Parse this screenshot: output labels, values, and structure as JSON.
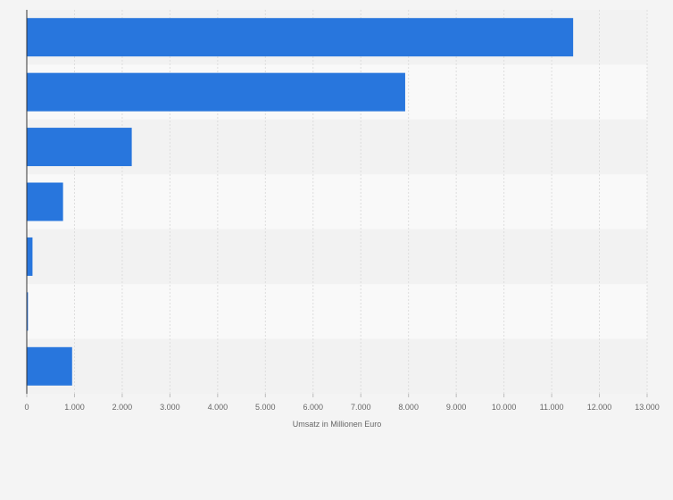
{
  "chart_data": {
    "type": "bar",
    "orientation": "horizontal",
    "categories": [
      "",
      "",
      "",
      "",
      "",
      "",
      ""
    ],
    "values": [
      11450,
      7930,
      2200,
      760,
      120,
      25,
      950
    ],
    "xlabel": "Umsatz in Millionen Euro",
    "ylabel": "",
    "xlim": [
      0,
      13000
    ],
    "ticks": [
      0,
      1000,
      2000,
      3000,
      4000,
      5000,
      6000,
      7000,
      8000,
      9000,
      10000,
      11000,
      12000,
      13000
    ],
    "tick_labels": [
      "0",
      "1.000",
      "2.000",
      "3.000",
      "4.000",
      "5.000",
      "6.000",
      "7.000",
      "8.000",
      "9.000",
      "10.000",
      "11.000",
      "12.000",
      "13.000"
    ],
    "grid": true,
    "legend": "none"
  },
  "colors": {
    "bar": "#2876dd",
    "band_light": "#f9f9f9",
    "band_dark": "#f2f2f2",
    "grid": "#dddddd",
    "axis": "#333333",
    "text": "#666666"
  }
}
